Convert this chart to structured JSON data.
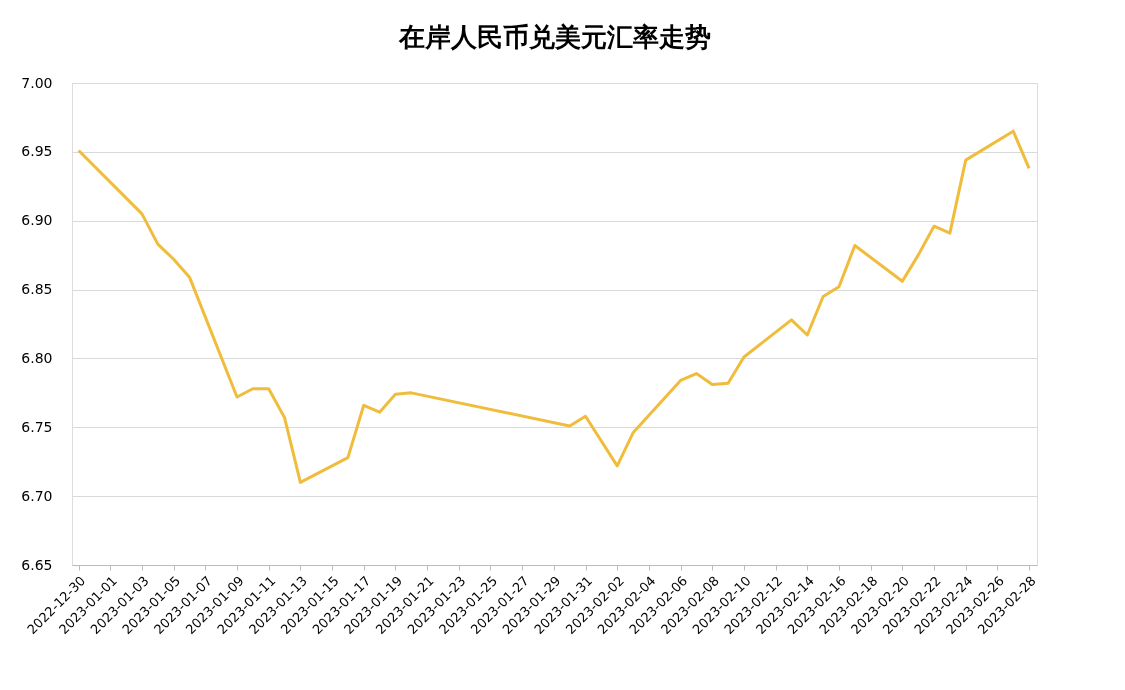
{
  "chart_data": {
    "type": "line",
    "title": "在岸人民币兑美元汇率走势",
    "x": [
      "2022-12-30",
      "2023-01-03",
      "2023-01-04",
      "2023-01-05",
      "2023-01-06",
      "2023-01-09",
      "2023-01-10",
      "2023-01-11",
      "2023-01-12",
      "2023-01-13",
      "2023-01-16",
      "2023-01-17",
      "2023-01-18",
      "2023-01-19",
      "2023-01-20",
      "2023-01-30",
      "2023-01-31",
      "2023-02-02",
      "2023-02-03",
      "2023-02-06",
      "2023-02-07",
      "2023-02-08",
      "2023-02-09",
      "2023-02-10",
      "2023-02-13",
      "2023-02-14",
      "2023-02-15",
      "2023-02-16",
      "2023-02-17",
      "2023-02-20",
      "2023-02-21",
      "2023-02-22",
      "2023-02-23",
      "2023-02-24",
      "2023-02-27",
      "2023-02-28"
    ],
    "series": [
      {
        "color": "#f0bc3c",
        "values": [
          6.951,
          6.905,
          6.883,
          6.872,
          6.859,
          6.772,
          6.778,
          6.778,
          6.757,
          6.71,
          6.728,
          6.766,
          6.761,
          6.774,
          6.775,
          6.751,
          6.758,
          6.722,
          6.746,
          6.784,
          6.789,
          6.781,
          6.782,
          6.801,
          6.828,
          6.817,
          6.845,
          6.852,
          6.882,
          6.856,
          6.875,
          6.896,
          6.891,
          6.944,
          6.965,
          6.938
        ]
      }
    ],
    "xlim": [
      "2022-12-29T14:00",
      "2023-02-28T12:00"
    ],
    "xticks": [
      "2022-12-30",
      "2023-01-01",
      "2023-01-03",
      "2023-01-05",
      "2023-01-07",
      "2023-01-09",
      "2023-01-11",
      "2023-01-13",
      "2023-01-15",
      "2023-01-17",
      "2023-01-19",
      "2023-01-21",
      "2023-01-23",
      "2023-01-25",
      "2023-01-27",
      "2023-01-29",
      "2023-01-31",
      "2023-02-02",
      "2023-02-04",
      "2023-02-06",
      "2023-02-08",
      "2023-02-10",
      "2023-02-12",
      "2023-02-14",
      "2023-02-16",
      "2023-02-18",
      "2023-02-20",
      "2023-02-22",
      "2023-02-24",
      "2023-02-26",
      "2023-02-28"
    ],
    "ylim": [
      6.65,
      7.0
    ],
    "yticks": [
      {
        "value": 6.65,
        "label": "6.65"
      },
      {
        "value": 6.7,
        "label": "6.70"
      },
      {
        "value": 6.75,
        "label": "6.75"
      },
      {
        "value": 6.8,
        "label": "6.80"
      },
      {
        "value": 6.85,
        "label": "6.85"
      },
      {
        "value": 6.9,
        "label": "6.90"
      },
      {
        "value": 6.95,
        "label": "6.95"
      },
      {
        "value": 7.0,
        "label": "7.00"
      }
    ],
    "grid": "y",
    "marker": "none",
    "line_style": "solid"
  }
}
